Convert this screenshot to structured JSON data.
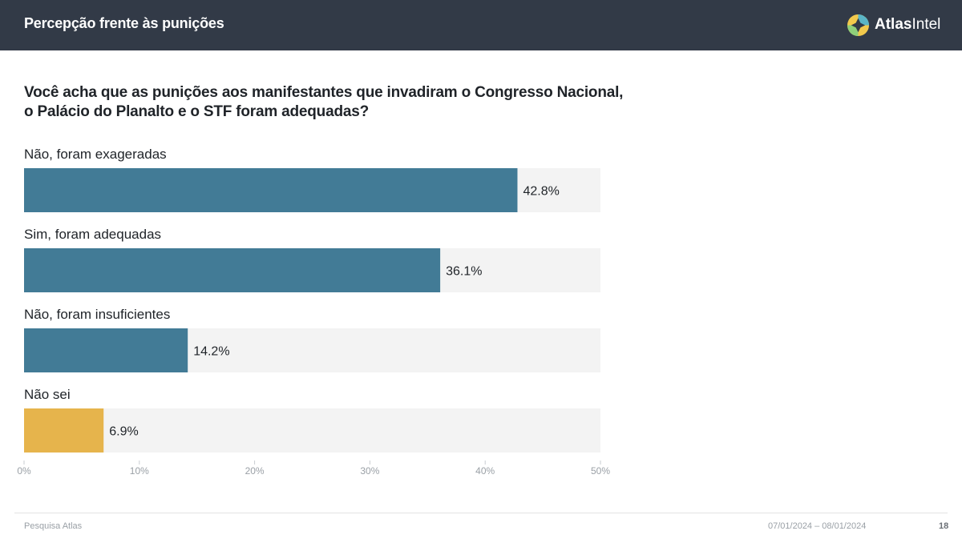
{
  "header": {
    "title": "Percepção frente às punições",
    "logo_bold": "Atlas",
    "logo_light": "Intel"
  },
  "question": {
    "line1": "Você acha que as punições aos manifestantes que invadiram o Congresso Nacional,",
    "line2": "o Palácio do Planalto e o STF foram adequadas?"
  },
  "chart_data": {
    "type": "bar",
    "orientation": "horizontal",
    "categories": [
      "Não, foram exageradas",
      "Sim, foram adequadas",
      "Não, foram insuficientes",
      "Não sei"
    ],
    "values": [
      42.8,
      36.1,
      14.2,
      6.9
    ],
    "value_labels": [
      "42.8%",
      "36.1%",
      "14.2%",
      "6.9%"
    ],
    "bar_colors": [
      "#427b96",
      "#427b96",
      "#427b96",
      "#e6b44c"
    ],
    "track_color": "#f3f3f3",
    "xlim": [
      0,
      50
    ],
    "xticks": [
      0,
      10,
      20,
      30,
      40,
      50
    ],
    "xtick_labels": [
      "0%",
      "10%",
      "20%",
      "30%",
      "40%",
      "50%"
    ],
    "grid": false,
    "legend": "none"
  },
  "footer": {
    "source": "Pesquisa Atlas",
    "dates": "07/01/2024 – 08/01/2024",
    "page": "18"
  }
}
